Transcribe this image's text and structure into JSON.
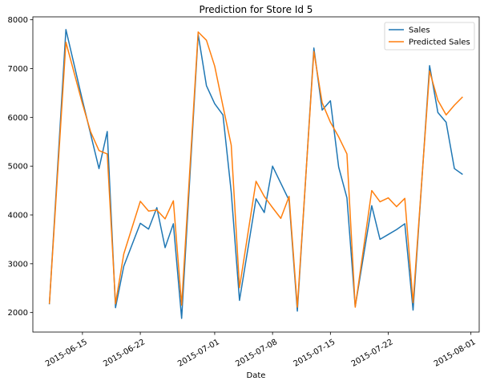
{
  "chart_data": {
    "type": "line",
    "title": "Prediction for  Store Id 5",
    "xlabel": "Date",
    "ylabel": "",
    "ylim": [
      1600,
      8060
    ],
    "xlim": [
      "2015-06-09",
      "2015-08-02"
    ],
    "grid": false,
    "legend_position": "top-right",
    "x_ticks": [
      "2015-06-15",
      "2015-06-22",
      "2015-07-01",
      "2015-07-08",
      "2015-07-15",
      "2015-07-22",
      "2015-08-01"
    ],
    "y_ticks": [
      2000,
      3000,
      4000,
      5000,
      6000,
      7000,
      8000
    ],
    "x": [
      "2015-06-11",
      "2015-06-13",
      "2015-06-15",
      "2015-06-16",
      "2015-06-17",
      "2015-06-18",
      "2015-06-19",
      "2015-06-20",
      "2015-06-22",
      "2015-06-23",
      "2015-06-24",
      "2015-06-25",
      "2015-06-26",
      "2015-06-27",
      "2015-06-29",
      "2015-06-30",
      "2015-07-01",
      "2015-07-02",
      "2015-07-03",
      "2015-07-04",
      "2015-07-06",
      "2015-07-07",
      "2015-07-08",
      "2015-07-09",
      "2015-07-10",
      "2015-07-11",
      "2015-07-13",
      "2015-07-14",
      "2015-07-15",
      "2015-07-16",
      "2015-07-17",
      "2015-07-18",
      "2015-07-20",
      "2015-07-21",
      "2015-07-22",
      "2015-07-23",
      "2015-07-24",
      "2015-07-25",
      "2015-07-27",
      "2015-07-28",
      "2015-07-29",
      "2015-07-30",
      "2015-07-31"
    ],
    "series": [
      {
        "name": "Sales",
        "color": "#1f77b4",
        "values": [
          2170,
          7800,
          6350,
          5650,
          4950,
          5710,
          2100,
          2950,
          3830,
          3710,
          4150,
          3330,
          3820,
          1880,
          7700,
          6650,
          6280,
          6050,
          4470,
          2250,
          4330,
          4050,
          5000,
          4650,
          4300,
          2030,
          7420,
          6150,
          6340,
          4980,
          4350,
          2120,
          4190,
          3500,
          3600,
          3700,
          3820,
          2050,
          7060,
          6100,
          5900,
          4950,
          4830
        ]
      },
      {
        "name": "Predicted Sales",
        "color": "#ff7f0e",
        "values": [
          2180,
          7540,
          6280,
          5700,
          5320,
          5250,
          2180,
          3200,
          4280,
          4080,
          4100,
          3920,
          4290,
          2150,
          7750,
          7580,
          7050,
          6230,
          5430,
          2510,
          4690,
          4380,
          4150,
          3930,
          4380,
          2110,
          7350,
          6300,
          5900,
          5600,
          5250,
          2110,
          4500,
          4270,
          4350,
          4170,
          4340,
          2200,
          6950,
          6350,
          6050,
          6250,
          6420
        ]
      }
    ]
  }
}
